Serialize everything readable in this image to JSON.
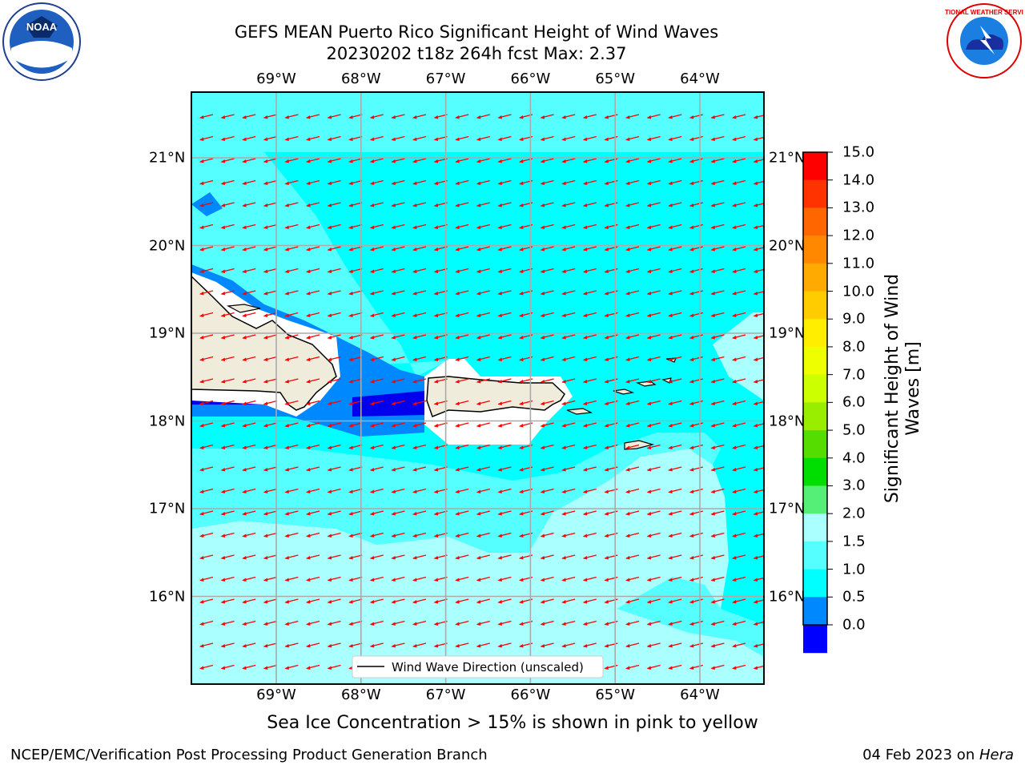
{
  "title": {
    "line1": "GEFS MEAN Puerto Rico Significant Height of Wind Waves",
    "line2": "20230202 t18z 264h fcst   Max: 2.37"
  },
  "axes": {
    "lon_labels": [
      "69°W",
      "68°W",
      "67°W",
      "66°W",
      "65°W",
      "64°W"
    ],
    "lat_labels": [
      "21°N",
      "20°N",
      "19°N",
      "18°N",
      "17°N",
      "16°N"
    ],
    "lon_values": [
      -69,
      -68,
      -67,
      -66,
      -65,
      -64
    ],
    "lat_values": [
      21,
      20,
      19,
      18,
      17,
      16
    ]
  },
  "colorbar": {
    "title": "Significant Height of Wind Waves [m]",
    "ticks": [
      "15.0",
      "14.0",
      "13.0",
      "12.0",
      "11.0",
      "10.0",
      "9.0",
      "8.0",
      "7.0",
      "6.0",
      "5.0",
      "4.0",
      "3.0",
      "2.0",
      "1.5",
      "1.0",
      "0.5",
      "0.0"
    ],
    "colors": [
      "#ff0000",
      "#ff3300",
      "#ff6600",
      "#ff8800",
      "#ffaa00",
      "#ffcc00",
      "#ffee00",
      "#eeff00",
      "#ccff00",
      "#99ee00",
      "#55dd00",
      "#00dd00",
      "#55ee77",
      "#aaffff",
      "#55ffff",
      "#00ffff",
      "#0088ff",
      "#0000ff"
    ]
  },
  "legend": {
    "label": "Wind Wave Direction (unscaled)"
  },
  "logos": {
    "noaa": "NOAA",
    "nws": "NATIONAL WEATHER SERVICE"
  },
  "footer": {
    "note": "Sea Ice Concentration > 15% is shown in pink to yellow",
    "left": "NCEP/EMC/Verification Post Processing Product Generation Branch",
    "right_date": "04 Feb 2023 on ",
    "right_host": "Hera"
  },
  "colors": {
    "ocean": "#00ffff",
    "light": "#aaffff",
    "mid": "#55ffff",
    "blue": "#0088ff",
    "dark": "#0000ee",
    "land": "#efecdc",
    "arrow": "#ff0000"
  }
}
